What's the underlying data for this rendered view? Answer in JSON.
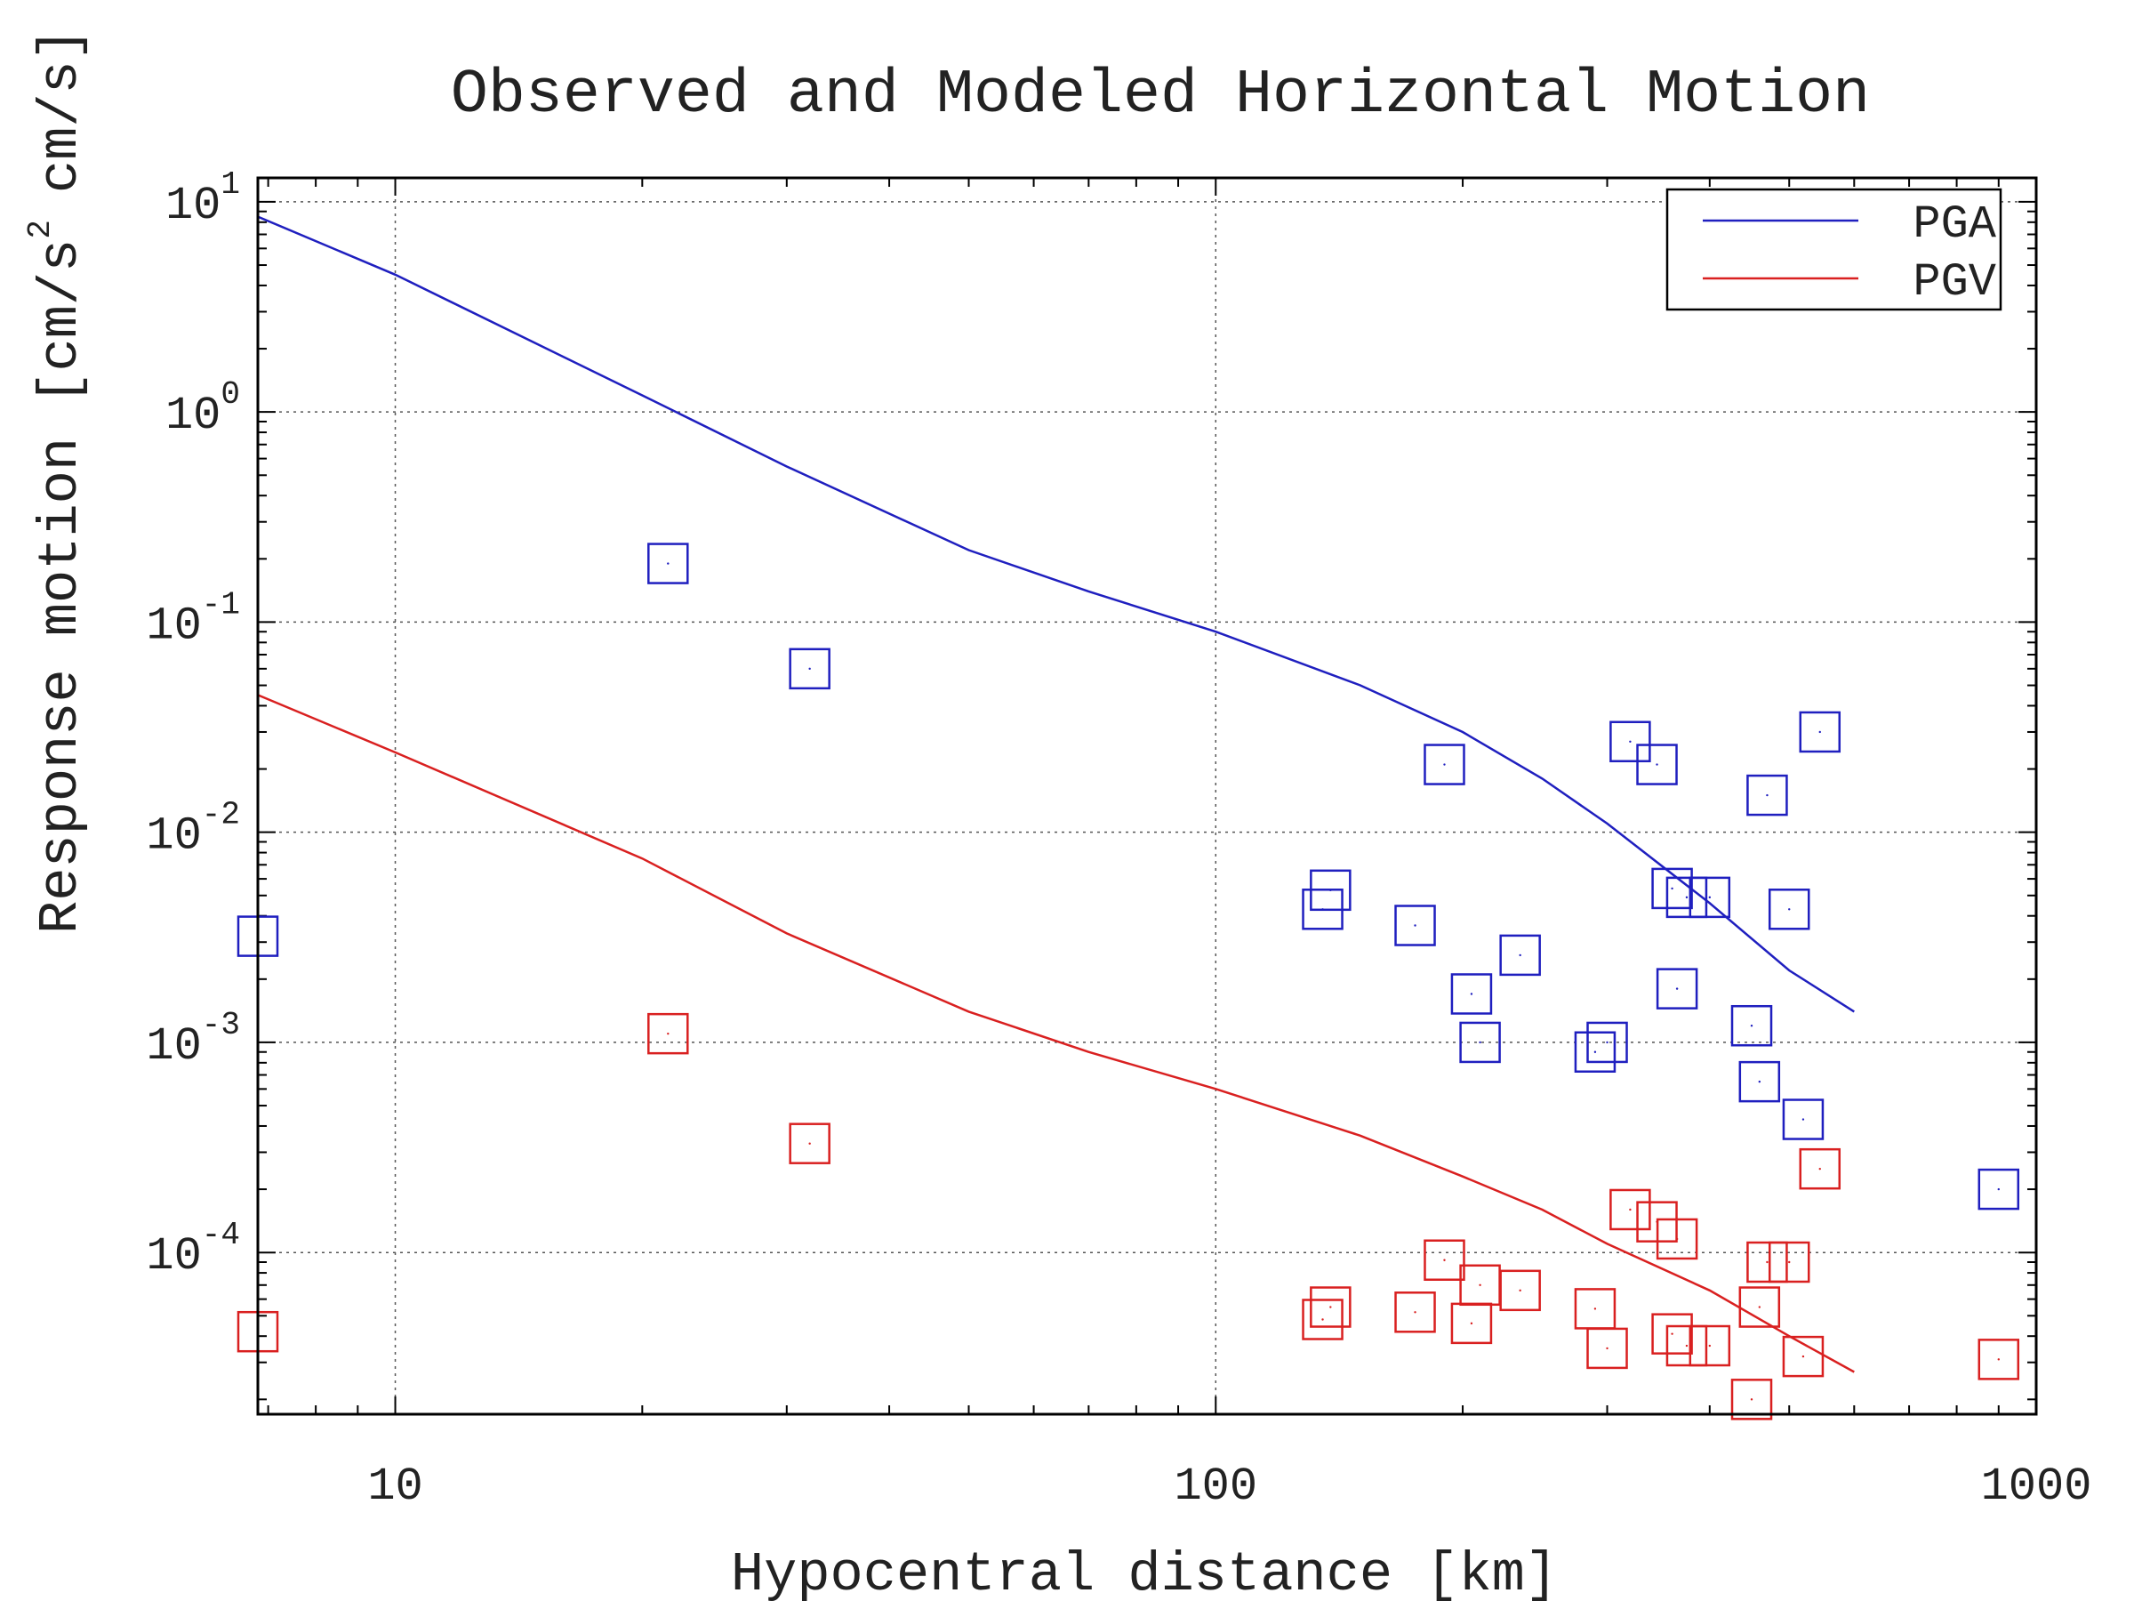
{
  "chart_data": {
    "type": "scatter",
    "title": "Observed and Modeled Horizontal Motion",
    "xlabel": "Hypocentral distance [km]",
    "ylabel": "Response motion [cm/s",
    "ylabel_sup": "2",
    "ylabel_tail": "cm/s]",
    "x_scale": "log",
    "y_scale": "log",
    "xlim": [
      6.8,
      1000
    ],
    "ylim": [
      1.7e-05,
      13
    ],
    "grid": true,
    "legend_position": "top-right",
    "x_ticks": [
      {
        "value": 10,
        "label": "10"
      },
      {
        "value": 100,
        "label": "100"
      },
      {
        "value": 1000,
        "label": "1000"
      }
    ],
    "y_ticks": [
      {
        "value": 10,
        "base": "10",
        "exp": "1"
      },
      {
        "value": 1,
        "base": "10",
        "exp": "0"
      },
      {
        "value": 0.1,
        "base": "10",
        "exp": "-1"
      },
      {
        "value": 0.01,
        "base": "10",
        "exp": "-2"
      },
      {
        "value": 0.001,
        "base": "10",
        "exp": "-3"
      },
      {
        "value": 0.0001,
        "base": "10",
        "exp": "-4"
      }
    ],
    "lines": [
      {
        "name": "PGA",
        "color": "#1f1fbf",
        "x": [
          6.8,
          10,
          20,
          30,
          50,
          70,
          100,
          150,
          200,
          250,
          300,
          400,
          500,
          600
        ],
        "y": [
          8.5,
          4.5,
          1.2,
          0.55,
          0.22,
          0.14,
          0.09,
          0.05,
          0.03,
          0.018,
          0.011,
          0.0046,
          0.0022,
          0.0014
        ]
      },
      {
        "name": "PGV",
        "color": "#d92020",
        "x": [
          6.8,
          10,
          20,
          30,
          50,
          70,
          100,
          150,
          200,
          250,
          300,
          400,
          500,
          600
        ],
        "y": [
          0.045,
          0.024,
          0.0075,
          0.0033,
          0.0014,
          0.0009,
          0.0006,
          0.00036,
          0.00023,
          0.00016,
          0.00011,
          6.6e-05,
          4e-05,
          2.7e-05
        ]
      }
    ],
    "series": [
      {
        "color": "#1f1fbf",
        "x": [
          6.8,
          21.5,
          32,
          135,
          138,
          175,
          190,
          205,
          210,
          235,
          290,
          300,
          320,
          345,
          360,
          365,
          375,
          400,
          450,
          460,
          470,
          500,
          520,
          545,
          900
        ],
        "y": [
          0.0032,
          0.19,
          0.06,
          0.0043,
          0.0053,
          0.0036,
          0.021,
          0.0017,
          0.001,
          0.0026,
          0.0009,
          0.001,
          0.027,
          0.021,
          0.0054,
          0.0018,
          0.0049,
          0.0049,
          0.0012,
          0.00065,
          0.015,
          0.0043,
          0.00043,
          0.03,
          0.0002
        ]
      },
      {
        "color": "#d92020",
        "x": [
          6.8,
          21.5,
          32,
          135,
          138,
          175,
          190,
          205,
          210,
          235,
          290,
          300,
          320,
          345,
          360,
          365,
          375,
          400,
          450,
          460,
          470,
          500,
          520,
          545,
          900
        ],
        "y": [
          4.2e-05,
          0.0011,
          0.00033,
          4.8e-05,
          5.5e-05,
          5.2e-05,
          9.2e-05,
          4.6e-05,
          7e-05,
          6.6e-05,
          5.4e-05,
          3.5e-05,
          0.00016,
          0.00014,
          4.1e-05,
          0.000116,
          3.6e-05,
          3.6e-05,
          2e-05,
          5.5e-05,
          9e-05,
          9e-05,
          3.2e-05,
          0.00025,
          3.1e-05
        ]
      }
    ],
    "legend": [
      {
        "label": "PGA",
        "color": "#1f1fbf"
      },
      {
        "label": "PGV",
        "color": "#d92020"
      }
    ]
  }
}
